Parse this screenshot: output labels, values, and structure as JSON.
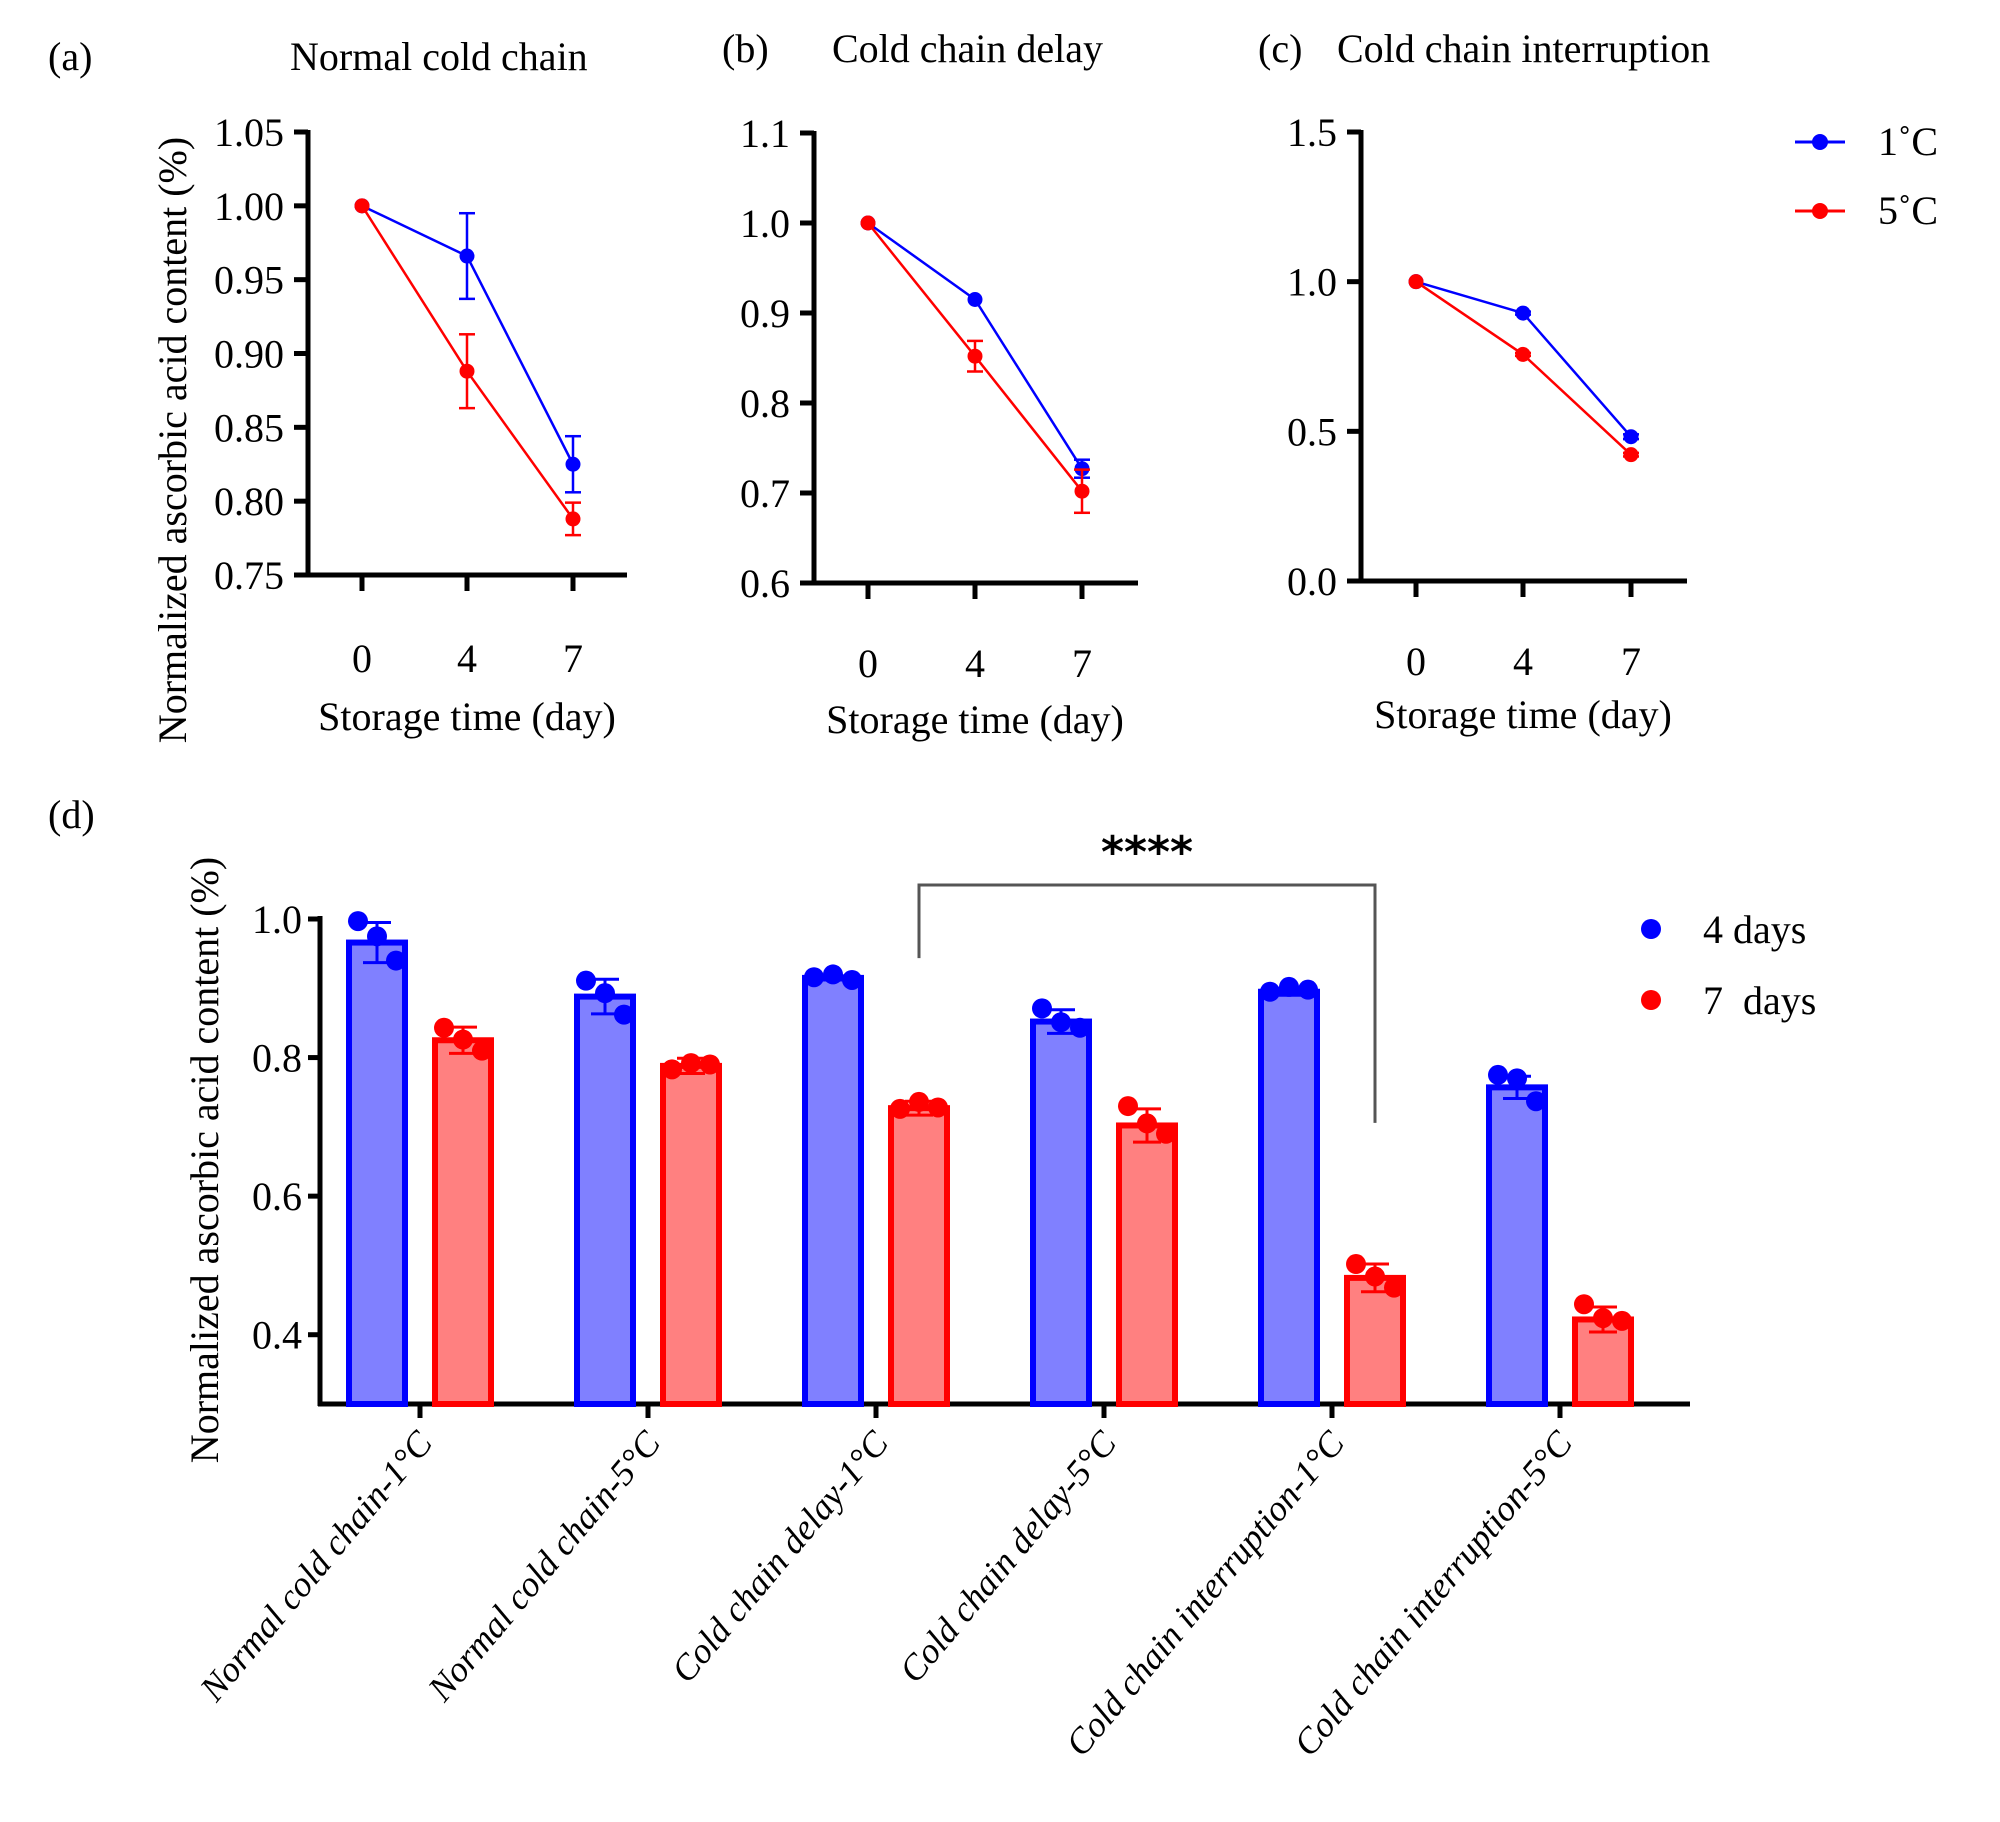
{
  "figure": {
    "colors": {
      "blue": "#0000ff",
      "red": "#ff0000",
      "blue_fill": "#8080ff",
      "red_fill": "#ff8080",
      "axis": "#000000",
      "bracket": "#555555"
    },
    "line_legend": [
      {
        "label": "1˚C",
        "color": "#0000ff"
      },
      {
        "label": "5˚C",
        "color": "#ff0000"
      }
    ],
    "bar_legend": [
      {
        "label": "4 days",
        "color": "#0000ff"
      },
      {
        "label": "7  days",
        "color": "#ff0000"
      }
    ]
  },
  "chart_data": [
    {
      "type": "line",
      "panel": "(a)",
      "title": "Normal cold chain",
      "xlabel": "Storage time (day)",
      "ylabel": "Normalized ascorbic acid content (%)",
      "x": [
        0,
        4,
        7
      ],
      "x_tick_labels": [
        "0",
        "4",
        "7"
      ],
      "ylim": [
        0.75,
        1.05
      ],
      "y_ticks": [
        0.75,
        0.8,
        0.85,
        0.9,
        0.95,
        1.0,
        1.05
      ],
      "y_tick_labels": [
        "0.75",
        "0.80",
        "0.85",
        "0.90",
        "0.95",
        "1.00",
        "1.05"
      ],
      "series": [
        {
          "name": "1˚C",
          "color": "#0000ff",
          "values": [
            1.0,
            0.966,
            0.825
          ],
          "errors": [
            0,
            0.029,
            0.019
          ]
        },
        {
          "name": "5˚C",
          "color": "#ff0000",
          "values": [
            1.0,
            0.888,
            0.788
          ],
          "errors": [
            0,
            0.025,
            0.011
          ]
        }
      ]
    },
    {
      "type": "line",
      "panel": "(b)",
      "title": "Cold chain delay",
      "xlabel": "Storage time (day)",
      "ylabel": "",
      "x": [
        0,
        4,
        7
      ],
      "x_tick_labels": [
        "0",
        "4",
        "7"
      ],
      "ylim": [
        0.6,
        1.1
      ],
      "y_ticks": [
        0.6,
        0.7,
        0.8,
        0.9,
        1.0,
        1.1
      ],
      "y_tick_labels": [
        "0.6",
        "0.7",
        "0.8",
        "0.9",
        "1.0",
        "1.1"
      ],
      "series": [
        {
          "name": "1˚C",
          "color": "#0000ff",
          "values": [
            1.0,
            0.915,
            0.727
          ],
          "errors": [
            0,
            0.003,
            0.01
          ]
        },
        {
          "name": "5˚C",
          "color": "#ff0000",
          "values": [
            1.0,
            0.852,
            0.702
          ],
          "errors": [
            0,
            0.017,
            0.024
          ]
        }
      ]
    },
    {
      "type": "line",
      "panel": "(c)",
      "title": "Cold chain interruption",
      "xlabel": "Storage time (day)",
      "ylabel": "",
      "x": [
        0,
        4,
        7
      ],
      "x_tick_labels": [
        "0",
        "4",
        "7"
      ],
      "ylim": [
        0.0,
        1.5
      ],
      "y_ticks": [
        0.0,
        0.5,
        1.0,
        1.5
      ],
      "y_tick_labels": [
        "0.0",
        "0.5",
        "1.0",
        "1.5"
      ],
      "legend": "right",
      "series": [
        {
          "name": "1˚C",
          "color": "#0000ff",
          "values": [
            1.0,
            0.895,
            0.482
          ],
          "errors": [
            0,
            0.005,
            0.008
          ]
        },
        {
          "name": "5˚C",
          "color": "#ff0000",
          "values": [
            1.0,
            0.757,
            0.422
          ],
          "errors": [
            0,
            0.005,
            0.006
          ]
        }
      ]
    },
    {
      "type": "bar",
      "panel": "(d)",
      "title": "",
      "xlabel": "",
      "ylabel": "Normalized ascorbic acid content (%)",
      "categories": [
        "Normal cold chain-1°C",
        "Normal cold chain-5°C",
        "Cold chain delay-1°C",
        "Cold chain delay-5°C",
        "Cold chain interruption-1°C",
        "Cold chain interruption-5°C"
      ],
      "ylim": [
        0.3,
        1.0
      ],
      "y_ticks": [
        0.4,
        0.6,
        0.8,
        1.0
      ],
      "y_tick_labels": [
        "0.4",
        "0.6",
        "0.8",
        "1.0"
      ],
      "legend": "top-right",
      "series": [
        {
          "name": "4 days",
          "color": "#0000ff",
          "fill": "#8080ff",
          "values": [
            0.966,
            0.888,
            0.915,
            0.852,
            0.895,
            0.757
          ],
          "errors": [
            0.029,
            0.025,
            0.003,
            0.017,
            0.005,
            0.016
          ],
          "points": [
            [
              0.997,
              0.975,
              0.94
            ],
            [
              0.911,
              0.893,
              0.862
            ],
            [
              0.916,
              0.92,
              0.912
            ],
            [
              0.871,
              0.851,
              0.843
            ],
            [
              0.895,
              0.902,
              0.898
            ],
            [
              0.775,
              0.77,
              0.737
            ]
          ]
        },
        {
          "name": "7 days",
          "color": "#ff0000",
          "fill": "#ff8080",
          "values": [
            0.825,
            0.788,
            0.727,
            0.702,
            0.482,
            0.422
          ],
          "errors": [
            0.019,
            0.011,
            0.01,
            0.024,
            0.02,
            0.018
          ],
          "points": [
            [
              0.843,
              0.826,
              0.81
            ],
            [
              0.783,
              0.792,
              0.79
            ],
            [
              0.726,
              0.736,
              0.728
            ],
            [
              0.73,
              0.705,
              0.69
            ],
            [
              0.502,
              0.484,
              0.468
            ],
            [
              0.444,
              0.424,
              0.42
            ]
          ]
        }
      ],
      "annotations": [
        {
          "text": "****",
          "from_category": 2,
          "from_series": 1,
          "to_category": 4,
          "to_series": 1
        }
      ]
    }
  ]
}
